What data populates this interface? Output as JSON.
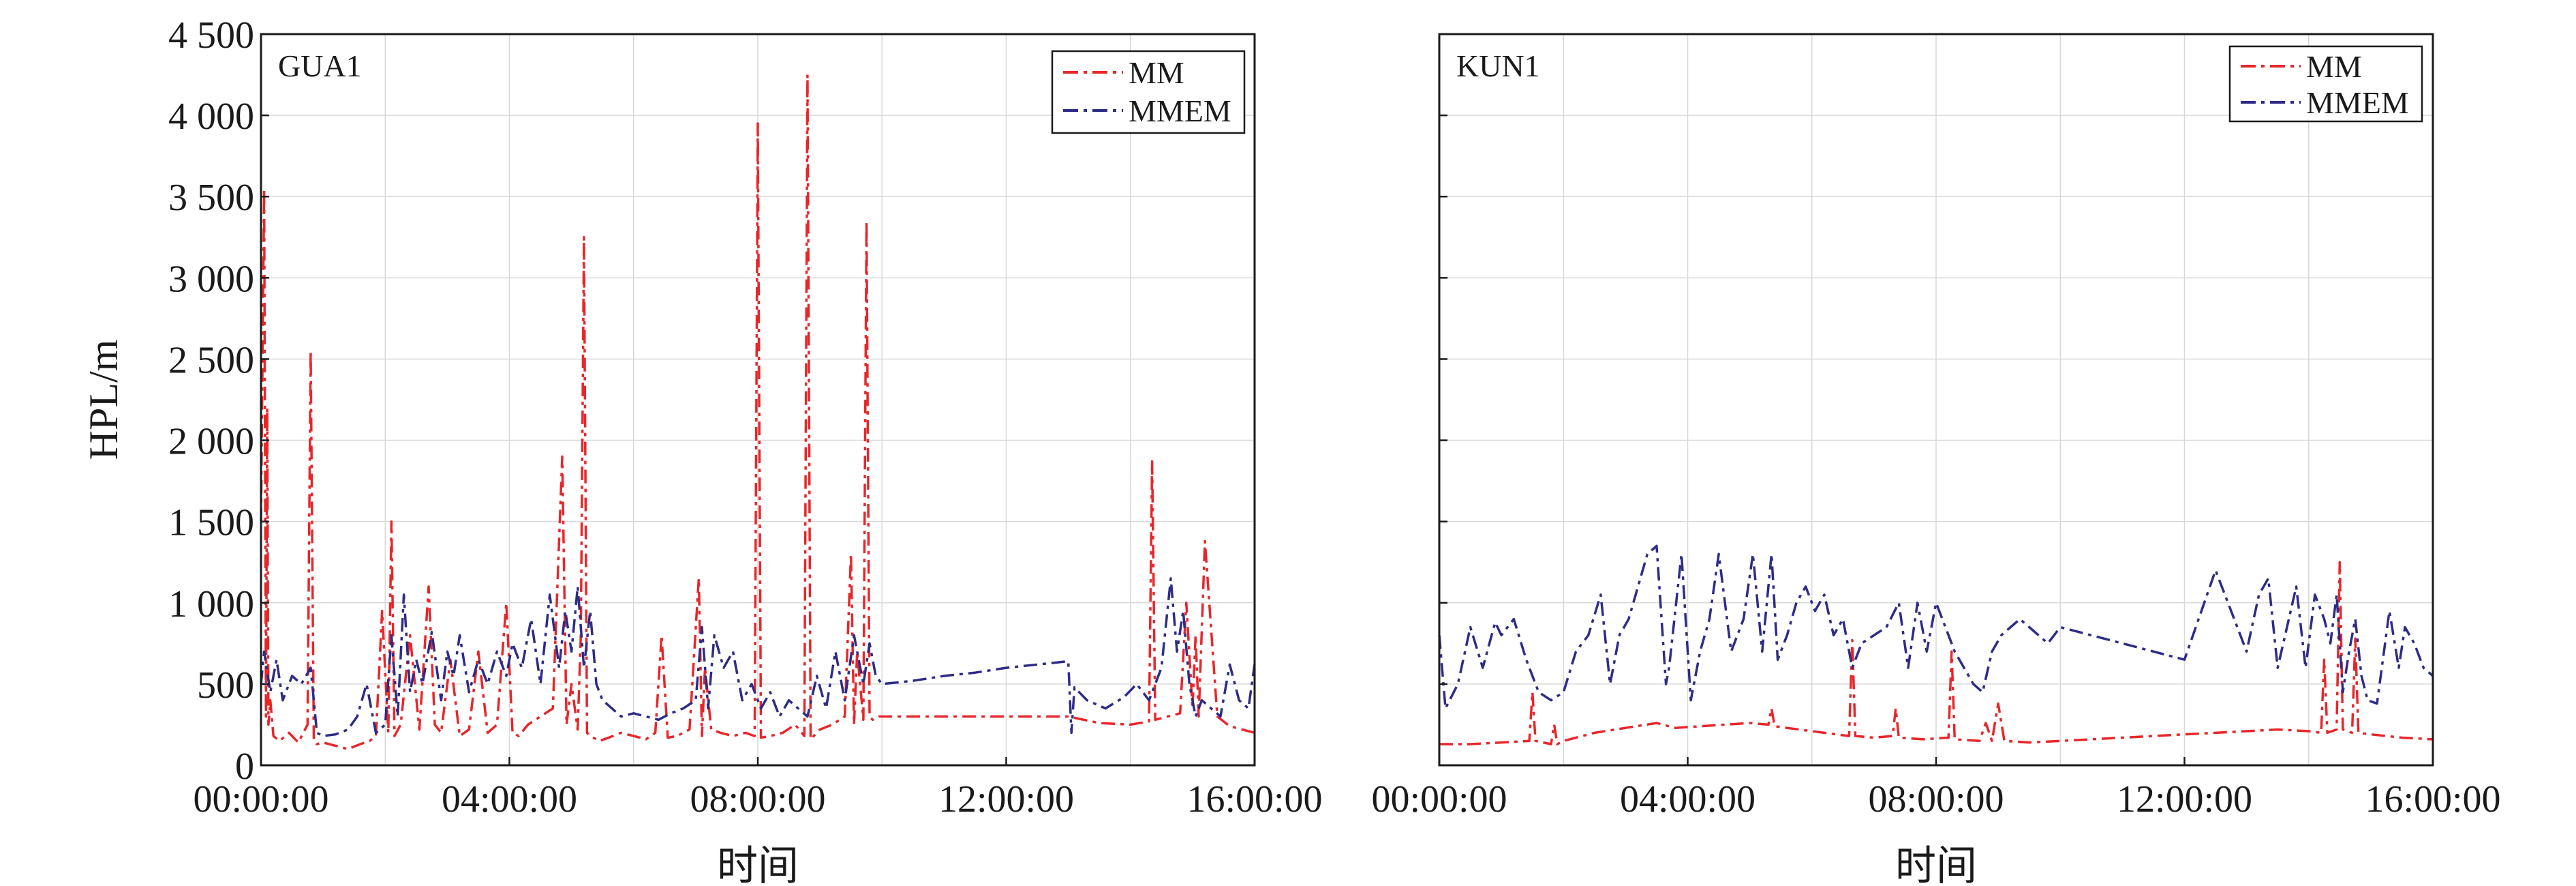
{
  "colors": {
    "MM": "#e8262a",
    "MMEM": "#2d2c86",
    "grid": "#d9d9d9",
    "axis": "#1a1a1a"
  },
  "chart_data": [
    {
      "type": "line",
      "panel_label": "GUA1",
      "xlabel": "时间",
      "ylabel": "HPL/m",
      "x_ticks": [
        "00:00:00",
        "04:00:00",
        "08:00:00",
        "12:00:00",
        "16:00:00"
      ],
      "x_unit": "hours",
      "xlim": [
        0,
        16
      ],
      "y_ticks": [
        "0",
        "500",
        "1 000",
        "1 500",
        "2 000",
        "2 500",
        "3 000",
        "3 500",
        "4 000",
        "4 500"
      ],
      "ylim": [
        0,
        4500
      ],
      "grid": true,
      "legend_position": "top-right",
      "series": [
        {
          "name": "MM",
          "style": "dash-dot",
          "x": [
            0,
            0.05,
            0.08,
            0.1,
            0.12,
            0.15,
            0.2,
            0.3,
            0.45,
            0.6,
            0.75,
            0.8,
            0.85,
            0.9,
            1.0,
            1.2,
            1.4,
            1.6,
            1.75,
            1.85,
            1.95,
            2.05,
            2.1,
            2.15,
            2.25,
            2.4,
            2.55,
            2.7,
            2.8,
            2.9,
            3.05,
            3.2,
            3.35,
            3.5,
            3.65,
            3.8,
            3.95,
            4.05,
            4.15,
            4.3,
            4.5,
            4.7,
            4.85,
            4.92,
            5.0,
            5.1,
            5.15,
            5.2,
            5.25,
            5.3,
            5.45,
            5.6,
            5.8,
            6.0,
            6.2,
            6.35,
            6.45,
            6.55,
            6.7,
            6.9,
            7.05,
            7.1,
            7.15,
            7.25,
            7.4,
            7.6,
            7.8,
            7.95,
            8.0,
            8.05,
            8.2,
            8.4,
            8.6,
            8.75,
            8.8,
            8.85,
            9.0,
            9.2,
            9.4,
            9.5,
            9.55,
            9.6,
            9.7,
            9.75,
            9.8,
            9.85,
            9.95,
            10.2,
            10.6,
            11.0,
            11.5,
            12.0,
            12.5,
            13.0,
            13.5,
            14.0,
            14.3,
            14.35,
            14.4,
            14.6,
            14.8,
            14.9,
            15.0,
            15.05,
            15.1,
            15.2,
            15.4,
            15.6,
            15.8,
            16.0
          ],
          "y": [
            1500,
            3550,
            300,
            2200,
            250,
            400,
            180,
            150,
            200,
            140,
            250,
            2550,
            150,
            130,
            140,
            120,
            100,
            130,
            150,
            180,
            950,
            200,
            1500,
            180,
            250,
            800,
            220,
            1100,
            250,
            200,
            650,
            180,
            220,
            700,
            200,
            250,
            1000,
            200,
            180,
            250,
            300,
            350,
            1900,
            250,
            500,
            220,
            800,
            3250,
            200,
            180,
            150,
            170,
            200,
            180,
            160,
            200,
            800,
            170,
            180,
            220,
            1150,
            180,
            600,
            220,
            200,
            180,
            200,
            180,
            3950,
            170,
            180,
            200,
            250,
            180,
            4250,
            160,
            220,
            250,
            300,
            1300,
            250,
            700,
            280,
            3350,
            300,
            280,
            300,
            300,
            300,
            300,
            300,
            300,
            300,
            300,
            260,
            250,
            270,
            1870,
            280,
            300,
            320,
            1000,
            350,
            800,
            300,
            1380,
            300,
            240,
            220,
            200
          ]
        },
        {
          "name": "MMEM",
          "style": "dash-dot",
          "x": [
            0,
            0.05,
            0.15,
            0.25,
            0.35,
            0.5,
            0.65,
            0.8,
            0.9,
            1.0,
            1.2,
            1.4,
            1.55,
            1.7,
            1.85,
            2.0,
            2.1,
            2.2,
            2.3,
            2.4,
            2.5,
            2.6,
            2.75,
            2.9,
            3.0,
            3.1,
            3.2,
            3.35,
            3.5,
            3.65,
            3.8,
            3.95,
            4.05,
            4.2,
            4.35,
            4.5,
            4.65,
            4.8,
            4.9,
            5.0,
            5.1,
            5.2,
            5.3,
            5.4,
            5.5,
            5.65,
            5.8,
            6.0,
            6.2,
            6.4,
            6.6,
            6.8,
            7.0,
            7.1,
            7.2,
            7.3,
            7.45,
            7.6,
            7.75,
            7.9,
            8.05,
            8.2,
            8.35,
            8.5,
            8.65,
            8.8,
            8.95,
            9.1,
            9.25,
            9.4,
            9.55,
            9.7,
            9.8,
            9.9,
            10.0,
            10.5,
            11.0,
            11.5,
            12.0,
            12.5,
            13.0,
            13.05,
            13.1,
            13.3,
            13.6,
            13.9,
            14.1,
            14.3,
            14.5,
            14.65,
            14.75,
            14.85,
            14.95,
            15.05,
            15.15,
            15.3,
            15.45,
            15.6,
            15.75,
            15.9,
            16.0
          ],
          "y": [
            500,
            700,
            450,
            650,
            400,
            550,
            500,
            600,
            200,
            180,
            190,
            220,
            300,
            500,
            200,
            250,
            800,
            300,
            1050,
            450,
            650,
            500,
            820,
            400,
            700,
            550,
            800,
            450,
            650,
            500,
            700,
            550,
            750,
            600,
            900,
            500,
            1050,
            600,
            950,
            700,
            1100,
            600,
            950,
            500,
            400,
            350,
            300,
            320,
            300,
            280,
            320,
            350,
            400,
            850,
            350,
            800,
            600,
            700,
            400,
            500,
            350,
            450,
            300,
            400,
            350,
            300,
            550,
            350,
            700,
            400,
            800,
            500,
            750,
            550,
            500,
            520,
            550,
            570,
            600,
            620,
            640,
            200,
            480,
            400,
            350,
            420,
            500,
            400,
            600,
            1150,
            700,
            950,
            500,
            300,
            400,
            350,
            300,
            620,
            400,
            350,
            620
          ]
        }
      ]
    },
    {
      "type": "line",
      "panel_label": "KUN1",
      "xlabel": "时间",
      "ylabel": "",
      "x_ticks": [
        "00:00:00",
        "04:00:00",
        "08:00:00",
        "12:00:00",
        "16:00:00"
      ],
      "x_unit": "hours",
      "xlim": [
        0,
        16
      ],
      "y_ticks": [],
      "ylim": [
        0,
        4500
      ],
      "grid": true,
      "legend_position": "top-right",
      "series": [
        {
          "name": "MM",
          "style": "dash-dot",
          "x": [
            0,
            0.5,
            1.0,
            1.45,
            1.5,
            1.55,
            1.8,
            1.85,
            1.9,
            2.0,
            2.5,
            3.0,
            3.5,
            3.8,
            4.2,
            4.6,
            5.0,
            5.3,
            5.35,
            5.4,
            5.8,
            6.2,
            6.6,
            6.65,
            6.7,
            7.0,
            7.3,
            7.35,
            7.4,
            7.8,
            8.2,
            8.25,
            8.3,
            8.7,
            8.8,
            8.9,
            9.0,
            9.1,
            9.5,
            10.0,
            10.5,
            11.0,
            11.5,
            12.0,
            12.5,
            13.0,
            13.5,
            14.0,
            14.2,
            14.25,
            14.3,
            14.45,
            14.5,
            14.55,
            14.7,
            14.75,
            14.8,
            15.0,
            15.5,
            16.0
          ],
          "y": [
            130,
            130,
            140,
            150,
            450,
            150,
            130,
            250,
            130,
            150,
            200,
            230,
            260,
            230,
            240,
            250,
            260,
            250,
            350,
            240,
            220,
            200,
            180,
            770,
            180,
            170,
            180,
            350,
            170,
            160,
            170,
            700,
            160,
            150,
            260,
            150,
            380,
            150,
            140,
            150,
            160,
            170,
            180,
            190,
            200,
            210,
            220,
            210,
            200,
            650,
            200,
            220,
            1250,
            220,
            200,
            780,
            200,
            190,
            170,
            160
          ]
        },
        {
          "name": "MMEM",
          "style": "dash-dot",
          "x": [
            0,
            0.1,
            0.3,
            0.5,
            0.7,
            0.9,
            1.0,
            1.2,
            1.4,
            1.6,
            1.8,
            2.0,
            2.2,
            2.4,
            2.6,
            2.75,
            2.8,
            2.9,
            3.05,
            3.2,
            3.35,
            3.5,
            3.65,
            3.7,
            3.9,
            4.05,
            4.15,
            4.2,
            4.35,
            4.5,
            4.7,
            4.9,
            5.05,
            5.2,
            5.35,
            5.45,
            5.6,
            5.75,
            5.9,
            6.05,
            6.2,
            6.35,
            6.5,
            6.65,
            6.8,
            7.0,
            7.2,
            7.4,
            7.55,
            7.7,
            7.85,
            8.0,
            8.15,
            8.3,
            8.45,
            8.6,
            8.75,
            8.9,
            9.05,
            9.2,
            9.35,
            9.5,
            9.65,
            9.8,
            10.0,
            10.5,
            11.0,
            11.5,
            12.0,
            12.5,
            13.0,
            13.2,
            13.35,
            13.5,
            13.65,
            13.8,
            13.95,
            14.1,
            14.25,
            14.35,
            14.45,
            14.55,
            14.65,
            14.75,
            14.85,
            14.95,
            15.1,
            15.3,
            15.45,
            15.55,
            15.7,
            15.85,
            16.0
          ],
          "y": [
            800,
            350,
            500,
            850,
            600,
            880,
            800,
            900,
            650,
            450,
            400,
            450,
            700,
            800,
            1050,
            500,
            600,
            800,
            900,
            1100,
            1300,
            1350,
            500,
            600,
            1300,
            400,
            600,
            700,
            900,
            1300,
            700,
            900,
            1300,
            700,
            1300,
            650,
            800,
            1000,
            1100,
            950,
            1050,
            800,
            900,
            600,
            750,
            800,
            850,
            1000,
            600,
            1000,
            700,
            1000,
            850,
            700,
            600,
            500,
            450,
            700,
            800,
            850,
            900,
            850,
            800,
            750,
            850,
            800,
            750,
            700,
            650,
            1200,
            700,
            1050,
            1150,
            600,
            850,
            1100,
            600,
            1050,
            900,
            750,
            1050,
            450,
            700,
            900,
            550,
            400,
            380,
            950,
            600,
            850,
            750,
            600,
            550
          ]
        }
      ]
    }
  ]
}
